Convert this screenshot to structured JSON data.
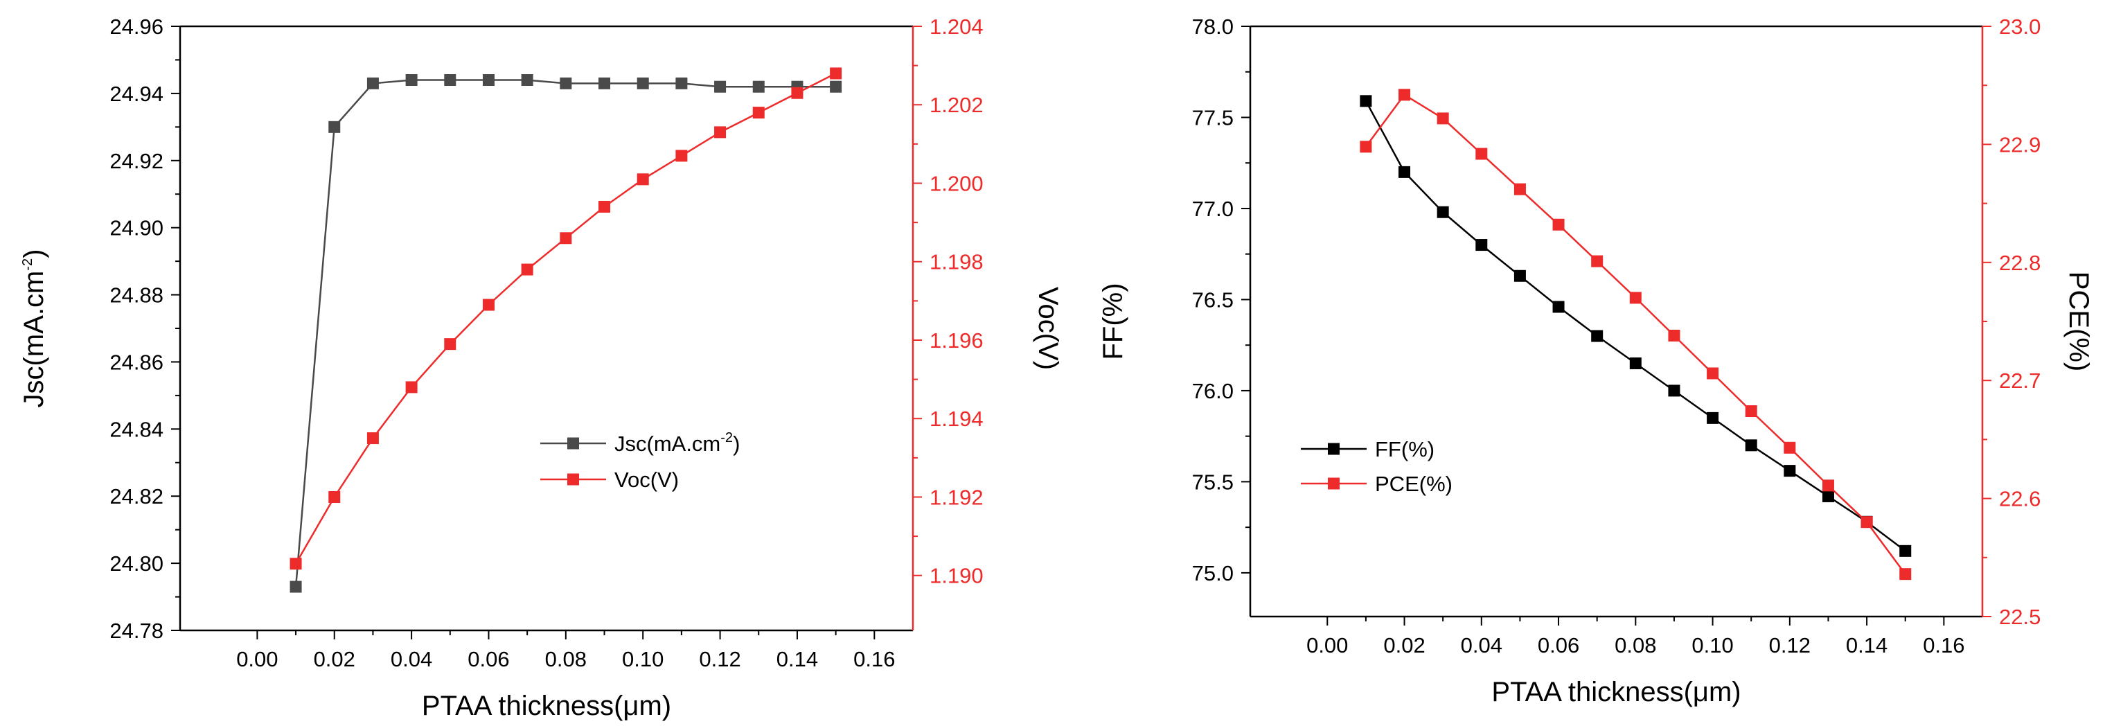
{
  "chart_data": [
    {
      "id": "left",
      "type": "line",
      "x": [
        0.01,
        0.02,
        0.03,
        0.04,
        0.05,
        0.06,
        0.07,
        0.08,
        0.09,
        0.1,
        0.11,
        0.12,
        0.13,
        0.14,
        0.15
      ],
      "xlabel": "PTAA thickness(μm)",
      "xlim": [
        -0.02,
        0.17
      ],
      "xticks": [
        "0.00",
        "0.02",
        "0.04",
        "0.06",
        "0.08",
        "0.10",
        "0.12",
        "0.14",
        "0.16"
      ],
      "legend_position": "center-right",
      "series": [
        {
          "name": "Jsc",
          "legend_label": "Jsc(mA.cm",
          "legend_sup": "-2",
          "legend_tail": ")",
          "axis": "left",
          "color": "#4a4a4a",
          "values": [
            24.793,
            24.93,
            24.943,
            24.944,
            24.944,
            24.944,
            24.944,
            24.943,
            24.943,
            24.943,
            24.943,
            24.942,
            24.942,
            24.942,
            24.942
          ]
        },
        {
          "name": "Voc",
          "legend_label": "Voc(V)",
          "axis": "right",
          "color": "#ee2b2b",
          "values": [
            1.1903,
            1.192,
            1.1935,
            1.1948,
            1.1959,
            1.1969,
            1.1978,
            1.1986,
            1.1994,
            1.2001,
            1.2007,
            1.2013,
            1.2018,
            1.2023,
            1.2028
          ]
        }
      ],
      "y_left": {
        "label": "Jsc(mA.cm",
        "label_sup": "-2",
        "label_tail": ")",
        "lim": [
          24.78,
          24.96
        ],
        "ticks": [
          "24.78",
          "24.80",
          "24.82",
          "24.84",
          "24.86",
          "24.88",
          "24.90",
          "24.92",
          "24.94",
          "24.96"
        ],
        "color": "#000000"
      },
      "y_right": {
        "label": "Voc(V)",
        "lim": [
          1.1886,
          1.204
        ],
        "ticks": [
          "1.190",
          "1.192",
          "1.194",
          "1.196",
          "1.198",
          "1.200",
          "1.202",
          "1.204"
        ],
        "color": "#ee2b2b"
      }
    },
    {
      "id": "right",
      "type": "line",
      "x": [
        0.01,
        0.02,
        0.03,
        0.04,
        0.05,
        0.06,
        0.07,
        0.08,
        0.09,
        0.1,
        0.11,
        0.12,
        0.13,
        0.14,
        0.15
      ],
      "xlabel": "PTAA thickness(μm)",
      "xlim": [
        -0.02,
        0.17
      ],
      "xticks": [
        "0.00",
        "0.02",
        "0.04",
        "0.06",
        "0.08",
        "0.10",
        "0.12",
        "0.14",
        "0.16"
      ],
      "legend_position": "left-middle",
      "series": [
        {
          "name": "FF",
          "legend_label": "FF(%)",
          "axis": "left",
          "color": "#000000",
          "values": [
            77.59,
            77.2,
            76.98,
            76.8,
            76.63,
            76.46,
            76.3,
            76.15,
            76.0,
            75.85,
            75.7,
            75.56,
            75.42,
            75.28,
            75.12
          ]
        },
        {
          "name": "PCE",
          "legend_label": "PCE(%)",
          "axis": "right",
          "color": "#ee2b2b",
          "values": [
            22.898,
            22.942,
            22.922,
            22.892,
            22.862,
            22.832,
            22.801,
            22.77,
            22.738,
            22.706,
            22.674,
            22.643,
            22.611,
            22.58,
            22.536
          ]
        }
      ],
      "y_left": {
        "label": "FF(%)",
        "lim": [
          74.76,
          78.0
        ],
        "ticks": [
          "75.0",
          "75.5",
          "76.0",
          "76.5",
          "77.0",
          "77.5",
          "78.0"
        ],
        "color": "#000000"
      },
      "y_right": {
        "label": "PCE(%)",
        "lim": [
          22.5,
          23.0
        ],
        "ticks": [
          "22.5",
          "22.6",
          "22.7",
          "22.8",
          "22.9",
          "23.0"
        ],
        "color": "#ee2b2b"
      }
    }
  ]
}
